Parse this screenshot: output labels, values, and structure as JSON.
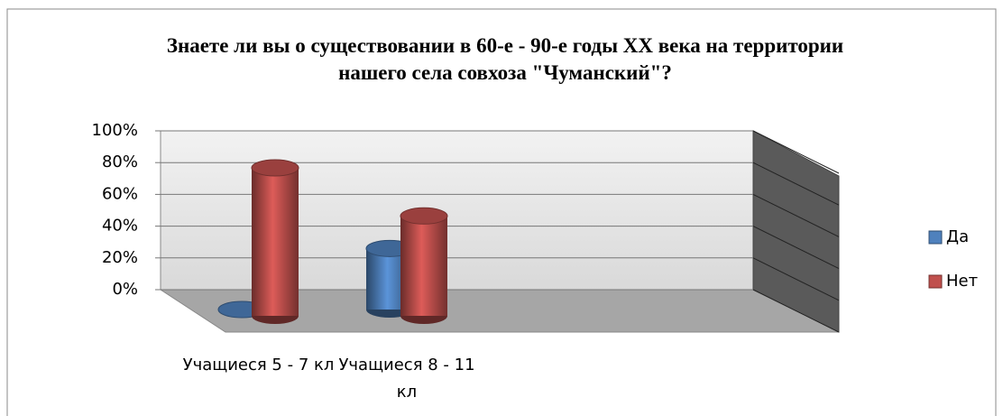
{
  "chart_data": {
    "type": "bar3d",
    "title": "Знаете ли вы о существовании в 60-е - 90-е годы XX века на территории нашего села совхоза \"Чуманский\"?",
    "categories": [
      "Учащиеся 5 - 7 кл",
      "Учащиеся 8 - 11 кл"
    ],
    "series": [
      {
        "name": "Да",
        "color": "#4f81bd",
        "values": [
          0,
          33
        ]
      },
      {
        "name": "Нет",
        "color": "#c0504d",
        "values": [
          80,
          54
        ]
      }
    ],
    "ylim": [
      0,
      100
    ],
    "yticks": [
      {
        "value": 0,
        "label": "0%"
      },
      {
        "value": 20,
        "label": "20%"
      },
      {
        "value": 40,
        "label": "40%"
      },
      {
        "value": 60,
        "label": "60%"
      },
      {
        "value": 80,
        "label": "80%"
      },
      {
        "value": 100,
        "label": "100%"
      }
    ],
    "grid": true,
    "legend": "right"
  }
}
